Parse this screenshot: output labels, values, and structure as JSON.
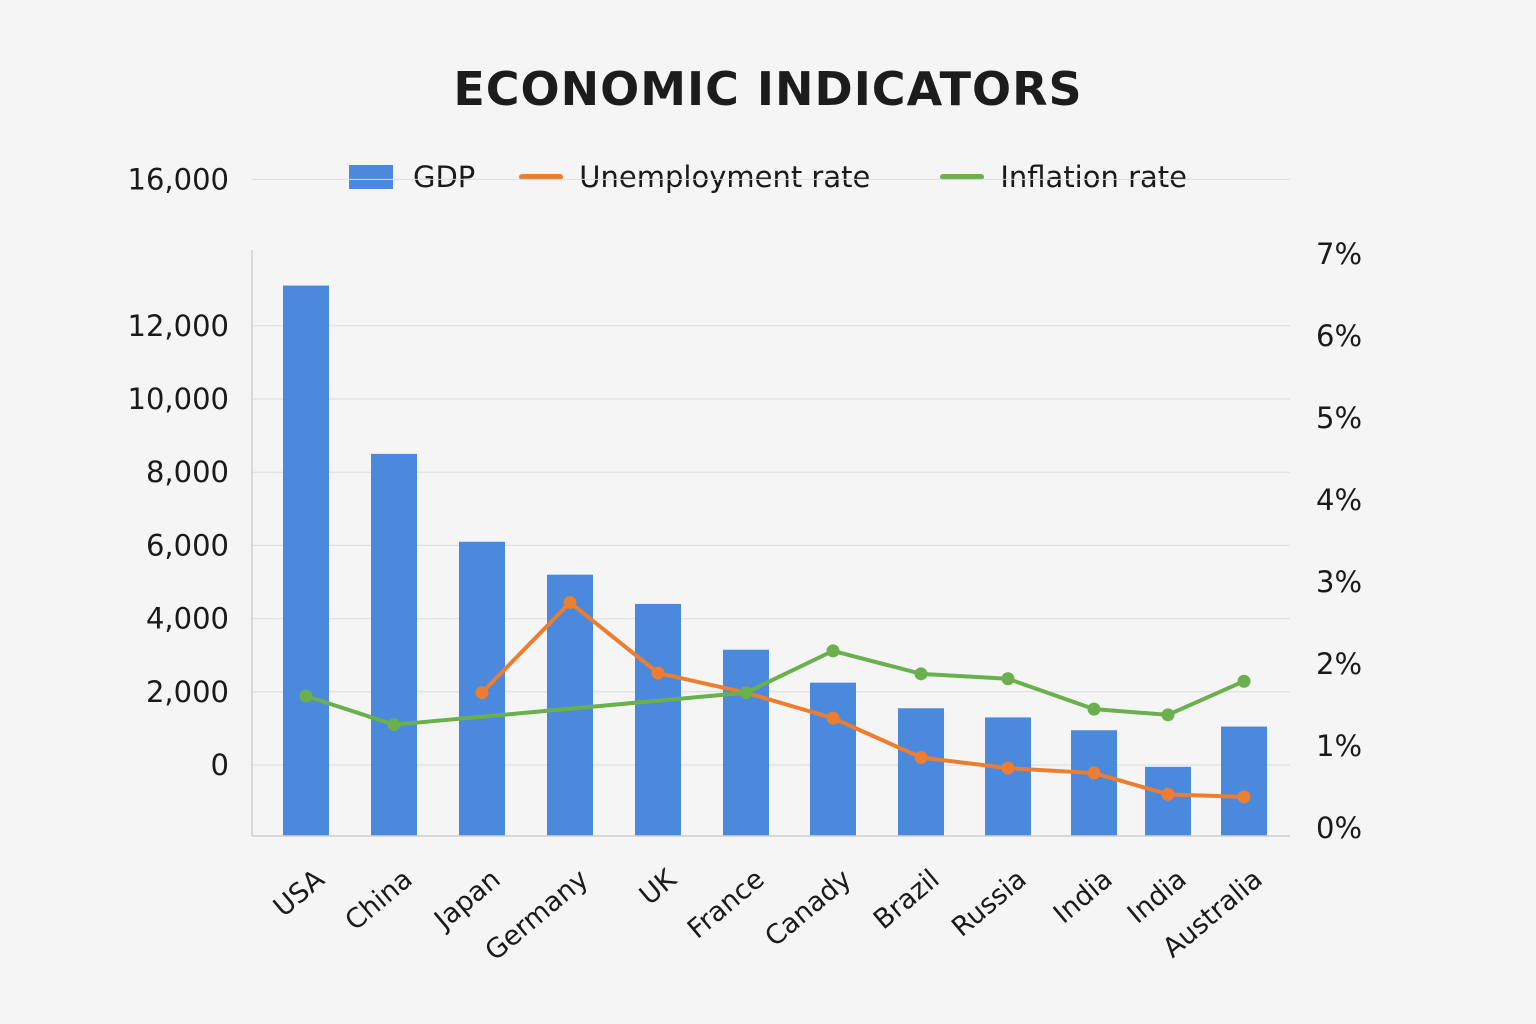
{
  "chart_data": {
    "type": "bar",
    "title": "ECONOMIC INDICATORS",
    "xlabel": "",
    "ylabel": "",
    "categories": [
      "USA",
      "China",
      "Japan",
      "Germany",
      "UK",
      "France",
      "Canady",
      "Brazil",
      "Russia",
      "India",
      "India",
      "Australia"
    ],
    "y_left_ticks": [
      "16,000",
      "12,000",
      "10,000",
      "8,000",
      "6,000",
      "4,000",
      "2,000",
      "0"
    ],
    "y_left_tick_values": [
      16000,
      12000,
      10000,
      8000,
      6000,
      4000,
      2000,
      0
    ],
    "y_right_ticks": [
      "7%",
      "6%",
      "5%",
      "4%",
      "3%",
      "2%",
      "1%",
      "0%"
    ],
    "y_right_tick_values": [
      7,
      6,
      5,
      4,
      3,
      2,
      1,
      0
    ],
    "ylim_left": [
      -2000,
      16000
    ],
    "ylim_right": [
      0,
      7
    ],
    "grid": true,
    "legend_position": "top-center",
    "series": [
      {
        "name": "GDP",
        "kind": "bar",
        "axis": "left",
        "color": "#4a89dc",
        "values": [
          13100,
          8500,
          6100,
          5200,
          4400,
          3150,
          2250,
          1550,
          1300,
          950,
          -50,
          1050
        ]
      },
      {
        "name": "Unemployment rate",
        "kind": "line",
        "axis": "right",
        "color": "#ed7d31",
        "values": [
          null,
          null,
          1.65,
          2.75,
          1.89,
          1.65,
          1.34,
          0.86,
          0.73,
          0.67,
          0.41,
          0.38
        ]
      },
      {
        "name": "Inflation rate",
        "kind": "line",
        "axis": "right",
        "color": "#6ab04c",
        "values": [
          1.61,
          1.26,
          null,
          null,
          null,
          1.65,
          2.16,
          1.88,
          1.82,
          1.45,
          1.38,
          1.79
        ]
      }
    ]
  }
}
